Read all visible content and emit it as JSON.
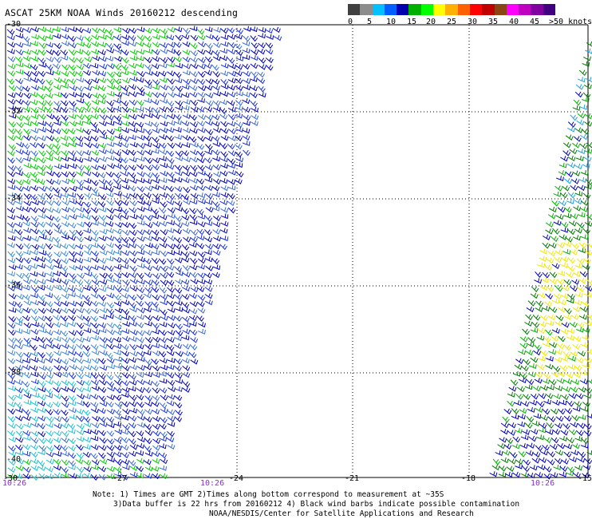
{
  "title": "ASCAT 25KM NOAA Winds 20160212 descending",
  "colorbar": {
    "colors": [
      "#404040",
      "#8c8c8c",
      "#00c0ff",
      "#0060ff",
      "#0000b0",
      "#00b000",
      "#00ff00",
      "#ffff00",
      "#ffb000",
      "#ff6000",
      "#ff0000",
      "#c00000",
      "#8b4513",
      "#ff00ff",
      "#c000c0",
      "#8000a0",
      "#400080"
    ],
    "labels": [
      "0",
      "5",
      "10",
      "15",
      "20",
      "25",
      "30",
      "35",
      "40",
      "45",
      ">50 knots"
    ]
  },
  "map": {
    "lat_labels": [
      "-30",
      "-32",
      "-34",
      "-36",
      "-38",
      "-40"
    ],
    "lon_labels": [
      "-27",
      "-24",
      "-21",
      "-18",
      "-15"
    ],
    "corner_label": "-30",
    "time_labels": [
      "10:26",
      "10:26",
      "10:26"
    ]
  },
  "notes": [
    "Note: 1) Times are GMT 2)Times along bottom correspond to measurement at ~35S",
    "3)Data buffer is 22 hrs from 20160212 4) Black wind barbs indicate possible contamination",
    "NOAA/NESDIS/Center for Satellite Applications and Research"
  ]
}
